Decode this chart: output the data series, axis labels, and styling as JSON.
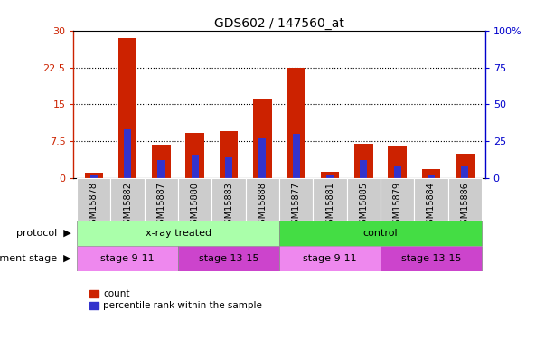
{
  "title": "GDS602 / 147560_at",
  "samples": [
    "GSM15878",
    "GSM15882",
    "GSM15887",
    "GSM15880",
    "GSM15883",
    "GSM15888",
    "GSM15877",
    "GSM15881",
    "GSM15885",
    "GSM15879",
    "GSM15884",
    "GSM15886"
  ],
  "count_values": [
    1.0,
    28.5,
    6.8,
    9.2,
    9.5,
    16.0,
    22.5,
    1.3,
    6.9,
    6.5,
    1.8,
    5.0
  ],
  "percentile_values": [
    1.5,
    33.0,
    12.0,
    15.0,
    14.0,
    27.0,
    30.0,
    1.5,
    12.0,
    8.0,
    1.5,
    8.0
  ],
  "left_ylim": [
    0,
    30
  ],
  "right_ylim": [
    0,
    100
  ],
  "left_yticks": [
    0,
    7.5,
    15,
    22.5,
    30
  ],
  "left_yticklabels": [
    "0",
    "7.5",
    "15",
    "22.5",
    "30"
  ],
  "right_yticks": [
    0,
    25,
    50,
    75,
    100
  ],
  "right_yticklabels": [
    "0",
    "25",
    "50",
    "75",
    "100%"
  ],
  "left_color": "#cc2200",
  "right_color": "#0000cc",
  "bar_color_red": "#cc2200",
  "bar_color_blue": "#3333cc",
  "bar_width": 0.55,
  "blue_bar_width": 0.22,
  "grid_color": "black",
  "grid_linestyle": "dotted",
  "protocol_label": "protocol",
  "development_label": "development stage",
  "protocol_groups": [
    {
      "label": "x-ray treated",
      "color": "#aaffaa",
      "start": 0,
      "end": 5
    },
    {
      "label": "control",
      "color": "#44dd44",
      "start": 6,
      "end": 11
    }
  ],
  "stage_groups": [
    {
      "label": "stage 9-11",
      "color": "#ee88ee",
      "start": 0,
      "end": 2
    },
    {
      "label": "stage 13-15",
      "color": "#cc44cc",
      "start": 3,
      "end": 5
    },
    {
      "label": "stage 9-11",
      "color": "#ee88ee",
      "start": 6,
      "end": 8
    },
    {
      "label": "stage 13-15",
      "color": "#cc44cc",
      "start": 9,
      "end": 11
    }
  ],
  "legend_red": "count",
  "legend_blue": "percentile rank within the sample",
  "xticklabel_bg": "#cccccc",
  "xticklabel_fontsize": 7,
  "label_fontsize": 8,
  "title_fontsize": 10
}
